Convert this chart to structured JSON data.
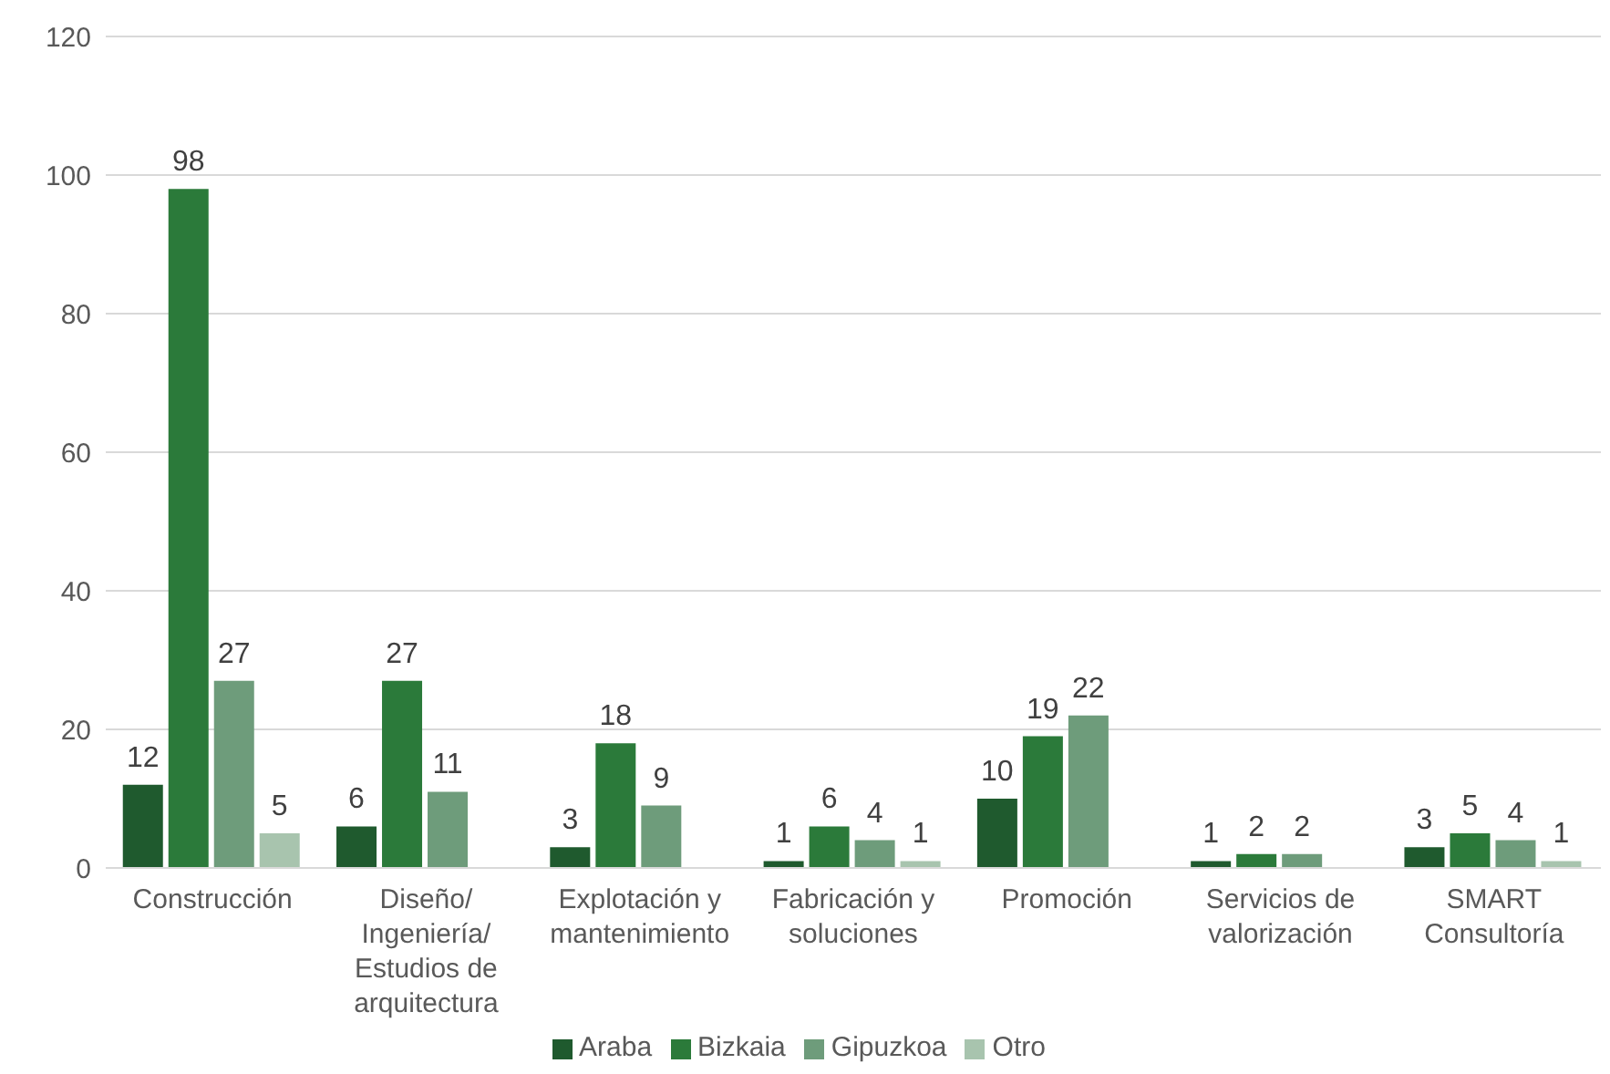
{
  "chart_data": {
    "type": "bar",
    "categories": [
      "Construcción",
      "Diseño/ Ingeniería/ Estudios de arquitectura",
      "Explotación y mantenimiento",
      "Fabricación y soluciones",
      "Promoción",
      "Servicios de valorización",
      "SMART Consultoría"
    ],
    "series": [
      {
        "name": "Araba",
        "color": "#1f5a2e",
        "values": [
          12,
          6,
          3,
          1,
          10,
          1,
          3
        ]
      },
      {
        "name": "Bizkaia",
        "color": "#2b7a3a",
        "values": [
          98,
          27,
          18,
          6,
          19,
          2,
          5
        ]
      },
      {
        "name": "Gipuzkoa",
        "color": "#6e9c7b",
        "values": [
          27,
          11,
          9,
          4,
          22,
          2,
          4
        ]
      },
      {
        "name": "Otro",
        "color": "#a8c4ae",
        "values": [
          5,
          null,
          null,
          1,
          null,
          null,
          1
        ]
      }
    ],
    "ylim": [
      0,
      120
    ],
    "yticks": [
      0,
      20,
      40,
      60,
      80,
      100,
      120
    ],
    "grid": "y",
    "legend": "bottom",
    "data_labels": true
  }
}
